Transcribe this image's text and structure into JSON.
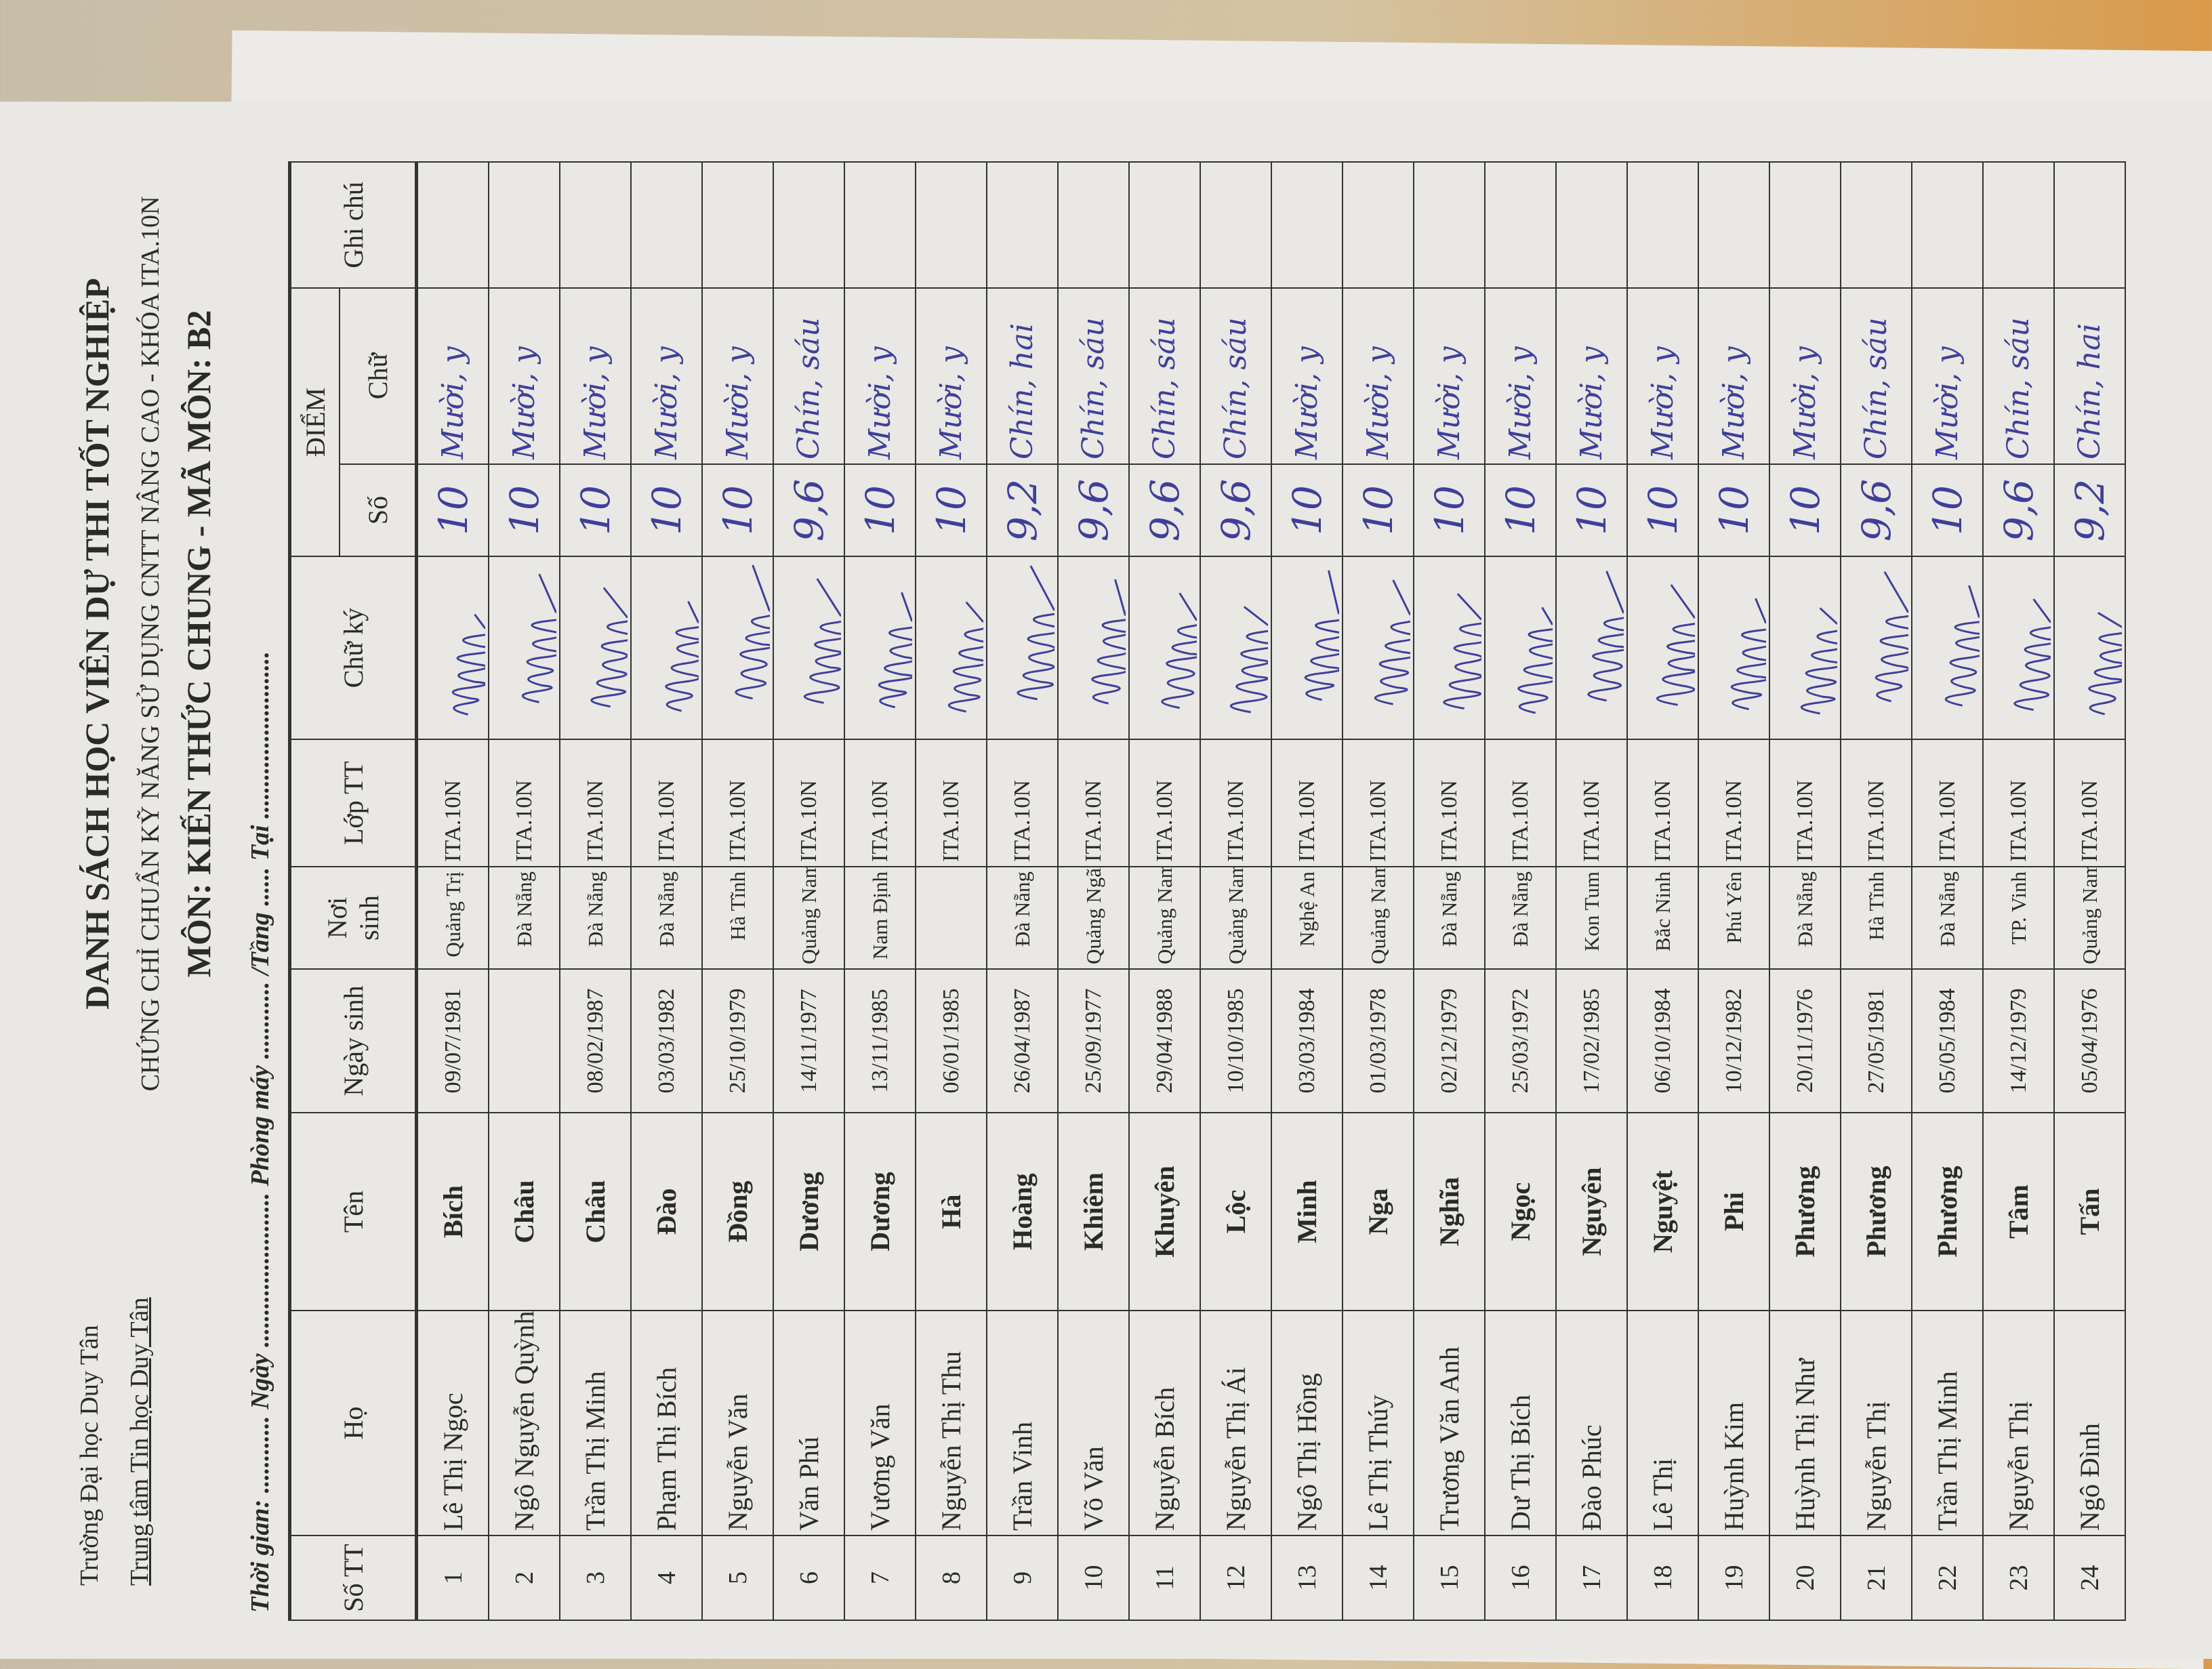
{
  "header": {
    "school": "Trường Đại học Duy Tân",
    "center": "Trung tâm Tin học Duy Tân",
    "title": "DANH SÁCH HỌC VIÊN DỰ THI TỐT NGHIỆP",
    "subtitle": "CHỨNG CHỈ CHUẨN KỸ NĂNG SỬ DỤNG CNTT NÂNG CAO - KHÓA ITA.10N",
    "subject": "MÔN: KIẾN THỨC CHUNG - MÃ MÔN: B2"
  },
  "info_line": "Thời gian: ............ Ngày ........................ Phòng máy ............ /Tầng ...... Tại ..........................",
  "columns": {
    "stt": "Số TT",
    "ho": "Họ",
    "ten": "Tên",
    "ngay_sinh": "Ngày sinh",
    "noi_sinh": "Nơi sinh",
    "lop": "Lớp TT",
    "chu_ky": "Chữ ký",
    "diem": "ĐIỂM",
    "diem_so": "Số",
    "diem_chu": "Chữ",
    "ghi_chu": "Ghi chú"
  },
  "ink_color": "#3e3f9c",
  "rows": [
    {
      "stt": "1",
      "ho": "Lê Thị Ngọc",
      "ten": "Bích",
      "ngay_sinh": "09/07/1981",
      "noi_sinh": "Quảng Trị",
      "lop": "ITA.10N",
      "diem_so": "10",
      "diem_chu": "Mười, y"
    },
    {
      "stt": "2",
      "ho": "Ngô Nguyễn Quỳnh",
      "ten": "Châu",
      "ngay_sinh": "",
      "noi_sinh": "Đà Nẵng",
      "lop": "ITA.10N",
      "diem_so": "10",
      "diem_chu": "Mười, y"
    },
    {
      "stt": "3",
      "ho": "Trần Thị Minh",
      "ten": "Châu",
      "ngay_sinh": "08/02/1987",
      "noi_sinh": "Đà Nẵng",
      "lop": "ITA.10N",
      "diem_so": "10",
      "diem_chu": "Mười, y"
    },
    {
      "stt": "4",
      "ho": "Phạm Thị Bích",
      "ten": "Đào",
      "ngay_sinh": "03/03/1982",
      "noi_sinh": "Đà Nẵng",
      "lop": "ITA.10N",
      "diem_so": "10",
      "diem_chu": "Mười, y"
    },
    {
      "stt": "5",
      "ho": "Nguyễn Văn",
      "ten": "Đồng",
      "ngay_sinh": "25/10/1979",
      "noi_sinh": "Hà Tĩnh",
      "lop": "ITA.10N",
      "diem_so": "10",
      "diem_chu": "Mười, y"
    },
    {
      "stt": "6",
      "ho": "Văn Phú",
      "ten": "Dương",
      "ngay_sinh": "14/11/1977",
      "noi_sinh": "Quảng Nam",
      "lop": "ITA.10N",
      "diem_so": "9,6",
      "diem_chu": "Chín, sáu"
    },
    {
      "stt": "7",
      "ho": "Vương Văn",
      "ten": "Dương",
      "ngay_sinh": "13/11/1985",
      "noi_sinh": "Nam Định",
      "lop": "ITA.10N",
      "diem_so": "10",
      "diem_chu": "Mười, y"
    },
    {
      "stt": "8",
      "ho": "Nguyễn Thị Thu",
      "ten": "Hà",
      "ngay_sinh": "06/01/1985",
      "noi_sinh": "",
      "lop": "ITA.10N",
      "diem_so": "10",
      "diem_chu": "Mười, y"
    },
    {
      "stt": "9",
      "ho": "Trần Vinh",
      "ten": "Hoàng",
      "ngay_sinh": "26/04/1987",
      "noi_sinh": "Đà Nẵng",
      "lop": "ITA.10N",
      "diem_so": "9,2",
      "diem_chu": "Chín, hai"
    },
    {
      "stt": "10",
      "ho": "Võ Văn",
      "ten": "Khiêm",
      "ngay_sinh": "25/09/1977",
      "noi_sinh": "Quảng Ngãi",
      "lop": "ITA.10N",
      "diem_so": "9,6",
      "diem_chu": "Chín, sáu"
    },
    {
      "stt": "11",
      "ho": "Nguyễn Bích",
      "ten": "Khuyên",
      "ngay_sinh": "29/04/1988",
      "noi_sinh": "Quảng Nam",
      "lop": "ITA.10N",
      "diem_so": "9,6",
      "diem_chu": "Chín, sáu"
    },
    {
      "stt": "12",
      "ho": "Nguyễn Thị Ái",
      "ten": "Lộc",
      "ngay_sinh": "10/10/1985",
      "noi_sinh": "Quảng Nam",
      "lop": "ITA.10N",
      "diem_so": "9,6",
      "diem_chu": "Chín, sáu"
    },
    {
      "stt": "13",
      "ho": "Ngô Thị Hồng",
      "ten": "Minh",
      "ngay_sinh": "03/03/1984",
      "noi_sinh": "Nghệ An",
      "lop": "ITA.10N",
      "diem_so": "10",
      "diem_chu": "Mười, y"
    },
    {
      "stt": "14",
      "ho": "Lê Thị Thúy",
      "ten": "Nga",
      "ngay_sinh": "01/03/1978",
      "noi_sinh": "Quảng Nam",
      "lop": "ITA.10N",
      "diem_so": "10",
      "diem_chu": "Mười, y"
    },
    {
      "stt": "15",
      "ho": "Trương Văn Anh",
      "ten": "Nghĩa",
      "ngay_sinh": "02/12/1979",
      "noi_sinh": "Đà Nẵng",
      "lop": "ITA.10N",
      "diem_so": "10",
      "diem_chu": "Mười, y"
    },
    {
      "stt": "16",
      "ho": "Dư Thị Bích",
      "ten": "Ngọc",
      "ngay_sinh": "25/03/1972",
      "noi_sinh": "Đà Nẵng",
      "lop": "ITA.10N",
      "diem_so": "10",
      "diem_chu": "Mười, y"
    },
    {
      "stt": "17",
      "ho": "Đào Phúc",
      "ten": "Nguyên",
      "ngay_sinh": "17/02/1985",
      "noi_sinh": "Kon Tum",
      "lop": "ITA.10N",
      "diem_so": "10",
      "diem_chu": "Mười, y"
    },
    {
      "stt": "18",
      "ho": "Lê Thị",
      "ten": "Nguyệt",
      "ngay_sinh": "06/10/1984",
      "noi_sinh": "Bắc Ninh",
      "lop": "ITA.10N",
      "diem_so": "10",
      "diem_chu": "Mười, y"
    },
    {
      "stt": "19",
      "ho": "Huỳnh Kim",
      "ten": "Phi",
      "ngay_sinh": "10/12/1982",
      "noi_sinh": "Phú Yên",
      "lop": "ITA.10N",
      "diem_so": "10",
      "diem_chu": "Mười, y"
    },
    {
      "stt": "20",
      "ho": "Huỳnh Thị Như",
      "ten": "Phương",
      "ngay_sinh": "20/11/1976",
      "noi_sinh": "Đà Nẵng",
      "lop": "ITA.10N",
      "diem_so": "10",
      "diem_chu": "Mười, y"
    },
    {
      "stt": "21",
      "ho": "Nguyễn Thị",
      "ten": "Phương",
      "ngay_sinh": "27/05/1981",
      "noi_sinh": "Hà Tĩnh",
      "lop": "ITA.10N",
      "diem_so": "9,6",
      "diem_chu": "Chín, sáu"
    },
    {
      "stt": "22",
      "ho": "Trần Thị Minh",
      "ten": "Phương",
      "ngay_sinh": "05/05/1984",
      "noi_sinh": "Đà Nẵng",
      "lop": "ITA.10N",
      "diem_so": "10",
      "diem_chu": "Mười, y"
    },
    {
      "stt": "23",
      "ho": "Nguyễn Thị",
      "ten": "Tâm",
      "ngay_sinh": "14/12/1979",
      "noi_sinh": "TP. Vinh",
      "lop": "ITA.10N",
      "diem_so": "9,6",
      "diem_chu": "Chín, sáu"
    },
    {
      "stt": "24",
      "ho": "Ngô Đình",
      "ten": "Tấn",
      "ngay_sinh": "05/04/1976",
      "noi_sinh": "Quảng Nam",
      "lop": "ITA.10N",
      "diem_so": "9,2",
      "diem_chu": "Chín, hai"
    }
  ]
}
